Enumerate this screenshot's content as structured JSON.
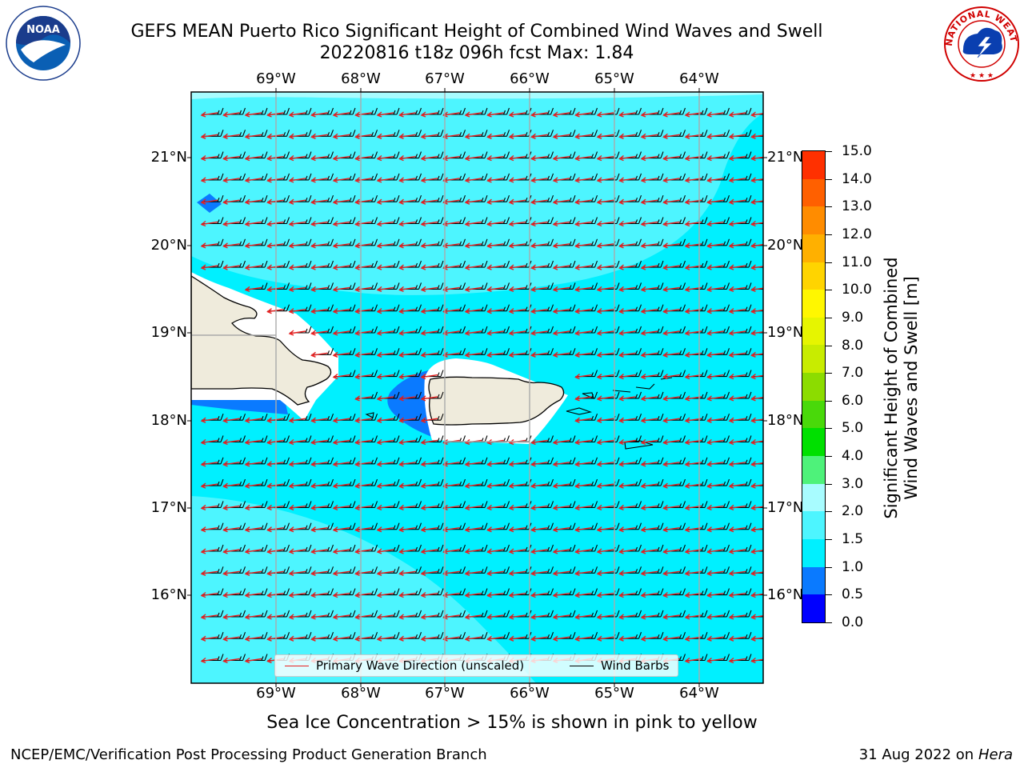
{
  "title": {
    "line1": "GEFS MEAN Puerto Rico Significant Height of Combined Wind Waves and Swell",
    "line2": "20220816 t18z 096h fcst   Max: 1.84"
  },
  "logos": {
    "left": {
      "text": "NOAA",
      "icon": "noaa-logo-icon"
    },
    "right": {
      "text": "NATIONAL WEATHER SERVICE",
      "icon": "nws-logo-icon"
    }
  },
  "axes": {
    "longitudes": [
      "69°W",
      "68°W",
      "67°W",
      "66°W",
      "65°W",
      "64°W"
    ],
    "latitudes": [
      "21°N",
      "20°N",
      "19°N",
      "18°N",
      "17°N",
      "16°N"
    ]
  },
  "legend": {
    "primary_wave": "Primary Wave Direction (unscaled)",
    "wind_barbs": "Wind Barbs",
    "primary_wave_color": "#e82020",
    "wind_barb_color": "#000000"
  },
  "colorbar": {
    "title_line1": "Significant Height of Combined",
    "title_line2": "Wind Waves and Swell [m]",
    "levels": [
      "0.0",
      "0.5",
      "1.0",
      "1.5",
      "2.0",
      "3.0",
      "4.0",
      "5.0",
      "6.0",
      "7.0",
      "8.0",
      "9.0",
      "10.0",
      "11.0",
      "12.0",
      "13.0",
      "14.0",
      "15.0"
    ],
    "colors": [
      "#0000ff",
      "#0a7aff",
      "#00f0ff",
      "#4df5ff",
      "#a8fcff",
      "#4ef27a",
      "#00e000",
      "#49d90a",
      "#8cdc00",
      "#c8ec00",
      "#e6f500",
      "#fff700",
      "#ffd400",
      "#ffb000",
      "#ff8c00",
      "#ff6000",
      "#ff3000"
    ]
  },
  "footer": {
    "note": "Sea Ice Concentration > 15% is shown in pink to yellow",
    "left": "NCEP/EMC/Verification Post Processing Product Generation Branch",
    "right_prefix": "31 Aug 2022 on",
    "right_host": "Hera"
  }
}
